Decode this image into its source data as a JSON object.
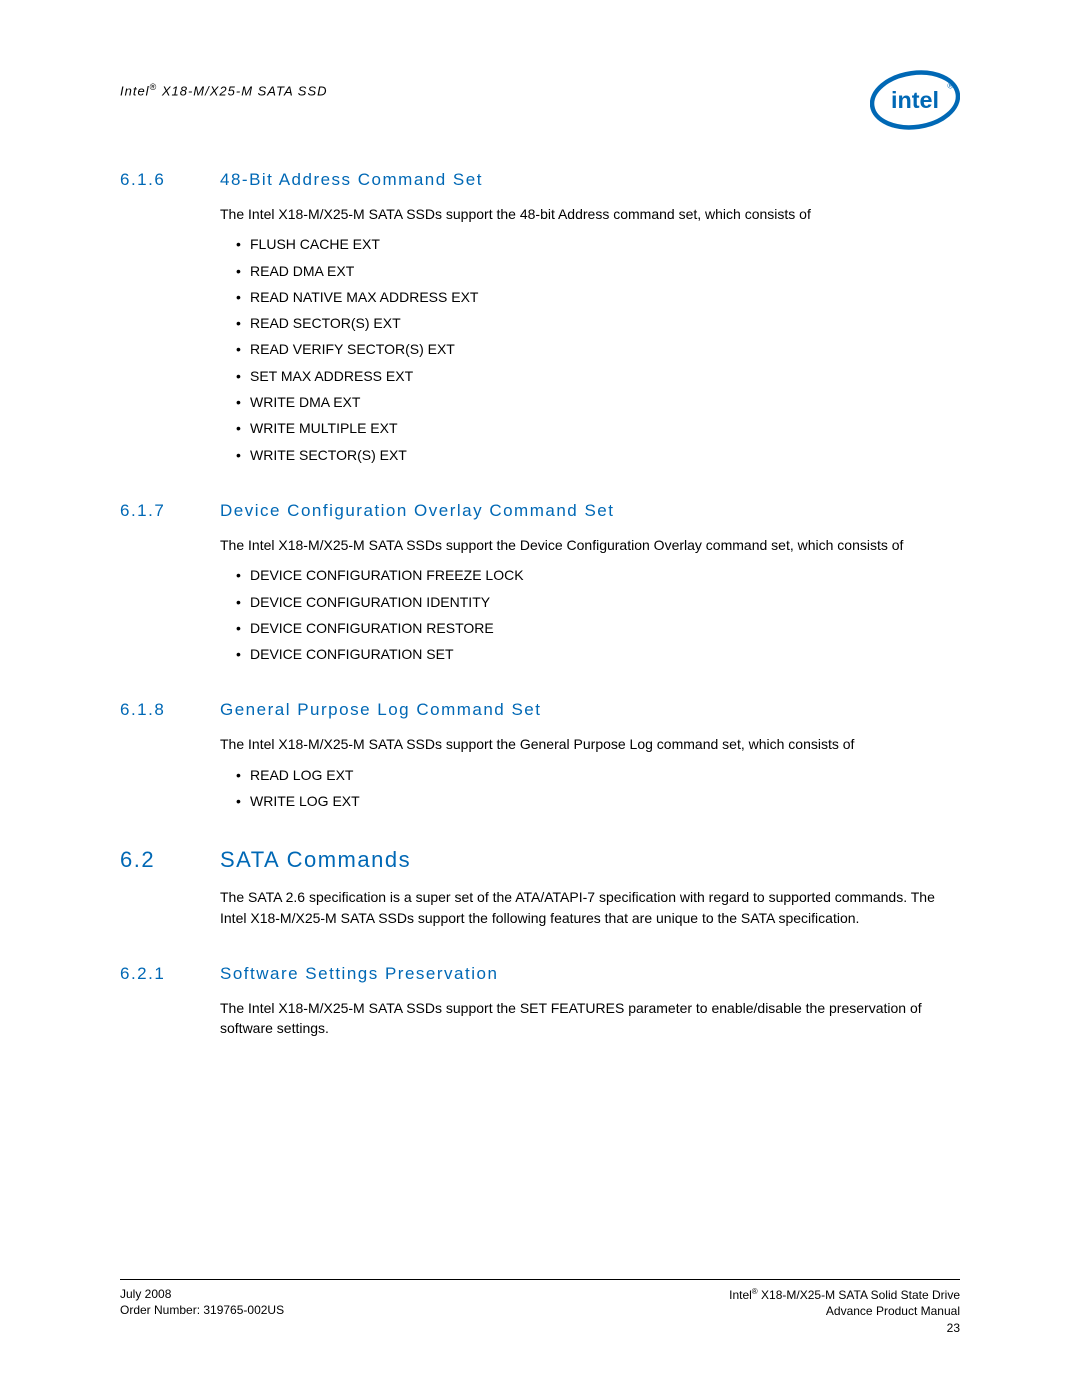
{
  "header": {
    "product_prefix": "Intel",
    "product_suffix": " X18-M/X25-M SATA SSD"
  },
  "logo": {
    "name": "intel-logo",
    "oval_color": "#0068b5",
    "text": "intel",
    "reg_mark": "®"
  },
  "sections": [
    {
      "level": "h3",
      "num": "6.1.6",
      "title": "48-Bit Address Command Set",
      "para": "The Intel X18-M/X25-M SATA SSDs support the 48-bit Address command set, which consists of",
      "items": [
        "FLUSH CACHE EXT",
        "READ DMA EXT",
        "READ NATIVE MAX ADDRESS EXT",
        "READ SECTOR(S) EXT",
        "READ VERIFY SECTOR(S) EXT",
        "SET MAX ADDRESS EXT",
        "WRITE DMA EXT",
        "WRITE MULTIPLE EXT",
        "WRITE SECTOR(S) EXT"
      ]
    },
    {
      "level": "h3",
      "num": "6.1.7",
      "title": "Device Configuration Overlay Command Set",
      "para": "The Intel X18-M/X25-M SATA SSDs support the Device Configuration Overlay command set, which consists of",
      "items": [
        "DEVICE CONFIGURATION FREEZE LOCK",
        "DEVICE CONFIGURATION IDENTITY",
        "DEVICE CONFIGURATION RESTORE",
        "DEVICE CONFIGURATION SET"
      ]
    },
    {
      "level": "h3",
      "num": "6.1.8",
      "title": "General Purpose Log Command Set",
      "para": "The Intel X18-M/X25-M SATA SSDs support the General Purpose Log command set, which consists of",
      "items": [
        "READ LOG EXT",
        "WRITE LOG EXT"
      ]
    },
    {
      "level": "h2",
      "num": "6.2",
      "title": "SATA Commands",
      "para": "The SATA 2.6 specification is a super set of the ATA/ATAPI-7 specification with regard to supported commands. The Intel X18-M/X25-M SATA SSDs support the following features that are unique to the SATA specification.",
      "items": []
    },
    {
      "level": "h3",
      "num": "6.2.1",
      "title": "Software Settings Preservation",
      "para": "The Intel X18-M/X25-M SATA SSDs support the SET FEATURES parameter to enable/disable the preservation of software settings.",
      "items": []
    }
  ],
  "footer": {
    "left_line1": "July 2008",
    "left_line2": "Order Number: 319765-002US",
    "right_line1_prefix": "Intel",
    "right_line1_suffix": " X18-M/X25-M SATA Solid State Drive",
    "right_line2": "Advance Product Manual",
    "right_line3": "23"
  },
  "colors": {
    "heading": "#0068b5",
    "text": "#000000",
    "background": "#ffffff"
  }
}
